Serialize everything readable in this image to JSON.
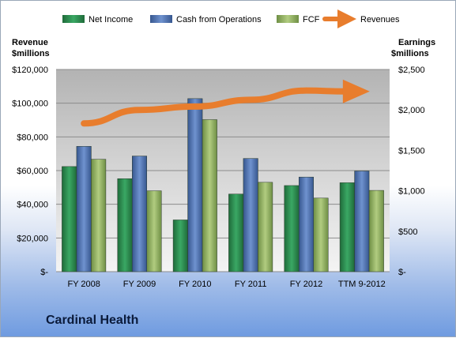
{
  "chart_data": {
    "type": "bar",
    "title": "Cardinal Health",
    "categories": [
      "FY 2008",
      "FY 2009",
      "FY 2010",
      "FY 2011",
      "FY 2012",
      "TTM 9-2012"
    ],
    "left_axis": {
      "label_lines": [
        "Revenue",
        "$millions"
      ],
      "range": [
        0,
        120000
      ],
      "ticks": [
        "$-",
        "$20,000",
        "$40,000",
        "$60,000",
        "$80,000",
        "$100,000",
        "$120,000"
      ]
    },
    "right_axis": {
      "label_lines": [
        "Earnings",
        "$millions"
      ],
      "range": [
        0,
        2500
      ],
      "ticks": [
        "$-",
        "$500",
        "$1,000",
        "$1,500",
        "$2,000",
        "$2,500"
      ]
    },
    "series": [
      {
        "name": "Net Income",
        "axis": "right",
        "color": "#2e8b4e",
        "values": [
          1300,
          1150,
          640,
          960,
          1065,
          1100
        ]
      },
      {
        "name": "Cash from Operations",
        "axis": "right",
        "color": "#4f72b0",
        "values": [
          1550,
          1430,
          2140,
          1400,
          1170,
          1245
        ]
      },
      {
        "name": "FCF",
        "axis": "right",
        "color": "#8fb05e",
        "values": [
          1390,
          1000,
          1880,
          1105,
          910,
          1005
        ]
      }
    ],
    "line_series": {
      "name": "Revenues",
      "axis": "left",
      "color": "#e87d2d",
      "values": [
        88000,
        96000,
        98000,
        102000,
        107500,
        107000
      ]
    },
    "grid": true,
    "legend_position": "top"
  }
}
